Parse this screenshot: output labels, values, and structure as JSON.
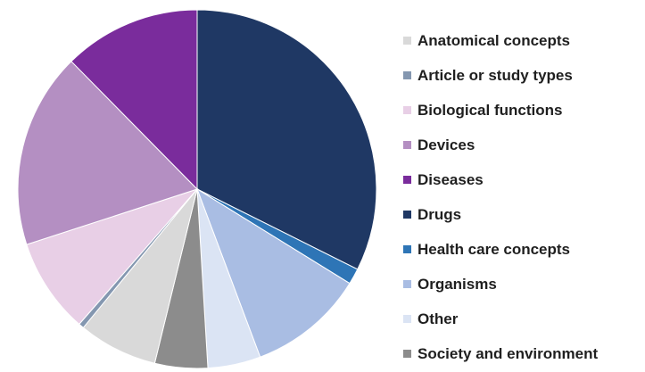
{
  "chart_data": {
    "type": "pie",
    "title": "",
    "legend_position": "right",
    "categories": [
      "Anatomical concepts",
      "Article or study types",
      "Biological functions",
      "Devices",
      "Diseases",
      "Drugs",
      "Health care concepts",
      "Organisms",
      "Other",
      "Society and environment"
    ],
    "colors": [
      "#d9d9d9",
      "#8497b0",
      "#e8cfe6",
      "#b48fc2",
      "#7a2c9c",
      "#1f3864",
      "#2e75b6",
      "#a9bde3",
      "#dbe4f4",
      "#8c8c8c"
    ],
    "values": [
      7.5,
      0.5,
      9,
      18.5,
      13,
      34,
      1.5,
      11,
      5,
      5
    ],
    "slice_order": [
      5,
      6,
      7,
      8,
      9,
      0,
      1,
      2,
      3,
      4
    ]
  }
}
